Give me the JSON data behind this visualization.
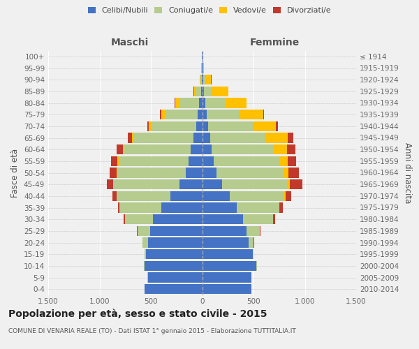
{
  "age_groups": [
    "0-4",
    "5-9",
    "10-14",
    "15-19",
    "20-24",
    "25-29",
    "30-34",
    "35-39",
    "40-44",
    "45-49",
    "50-54",
    "55-59",
    "60-64",
    "65-69",
    "70-74",
    "75-79",
    "80-84",
    "85-89",
    "90-94",
    "95-99",
    "100+"
  ],
  "birth_years": [
    "2010-2014",
    "2005-2009",
    "2000-2004",
    "1995-1999",
    "1990-1994",
    "1985-1989",
    "1980-1984",
    "1975-1979",
    "1970-1974",
    "1965-1969",
    "1960-1964",
    "1955-1959",
    "1950-1954",
    "1945-1949",
    "1940-1944",
    "1935-1939",
    "1930-1934",
    "1925-1929",
    "1920-1924",
    "1915-1919",
    "≤ 1914"
  ],
  "males": {
    "celibe": [
      560,
      530,
      560,
      550,
      530,
      510,
      480,
      400,
      310,
      220,
      160,
      130,
      110,
      85,
      60,
      45,
      30,
      10,
      5,
      3,
      2
    ],
    "coniugato": [
      2,
      3,
      5,
      10,
      50,
      120,
      270,
      400,
      520,
      640,
      660,
      680,
      650,
      580,
      430,
      310,
      190,
      50,
      15,
      3,
      1
    ],
    "vedovo": [
      0,
      0,
      0,
      1,
      2,
      2,
      2,
      3,
      5,
      8,
      10,
      15,
      15,
      20,
      30,
      45,
      45,
      20,
      5,
      1,
      0
    ],
    "divorziato": [
      0,
      0,
      1,
      2,
      3,
      5,
      10,
      20,
      40,
      60,
      70,
      65,
      60,
      40,
      15,
      10,
      5,
      3,
      2,
      0,
      0
    ]
  },
  "females": {
    "nubile": [
      480,
      480,
      530,
      490,
      450,
      430,
      400,
      340,
      270,
      195,
      140,
      115,
      95,
      75,
      60,
      45,
      30,
      15,
      8,
      4,
      2
    ],
    "coniugata": [
      2,
      2,
      5,
      10,
      50,
      130,
      290,
      410,
      530,
      640,
      650,
      640,
      600,
      550,
      430,
      310,
      200,
      80,
      30,
      5,
      2
    ],
    "vedova": [
      0,
      0,
      0,
      1,
      2,
      3,
      3,
      5,
      10,
      20,
      50,
      80,
      130,
      210,
      230,
      240,
      200,
      160,
      50,
      8,
      1
    ],
    "divorziata": [
      0,
      0,
      0,
      1,
      3,
      8,
      15,
      30,
      60,
      120,
      100,
      80,
      80,
      55,
      15,
      10,
      5,
      3,
      2,
      0,
      0
    ]
  },
  "colors": {
    "celibe": "#4472c4",
    "coniugato": "#b5cc8e",
    "vedovo": "#ffc000",
    "divorziato": "#c0392b"
  },
  "xlim": 1500,
  "title": "Popolazione per età, sesso e stato civile - 2015",
  "subtitle": "COMUNE DI VENARIA REALE (TO) - Dati ISTAT 1° gennaio 2015 - Elaborazione TUTTITALIA.IT",
  "ylabel_left": "Fasce di età",
  "ylabel_right": "Anni di nascita",
  "xlabel_left": "Maschi",
  "xlabel_right": "Femmine",
  "bg_color": "#f0f0f0",
  "plot_bg": "#f0f0f0",
  "bar_height": 0.85
}
